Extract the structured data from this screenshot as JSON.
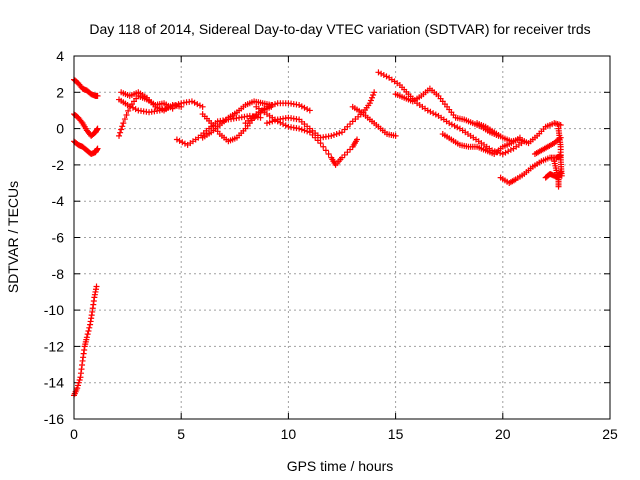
{
  "chart_data": {
    "type": "scatter",
    "title": "Day 118 of 2014, Sidereal Day-to-day VTEC variation (SDTVAR) for receiver trds",
    "xlabel": "GPS time / hours",
    "ylabel": "SDTVAR / TECUs",
    "xlim": [
      0,
      25
    ],
    "ylim": [
      -16,
      4
    ],
    "xticks": [
      0,
      5,
      10,
      15,
      20,
      25
    ],
    "yticks": [
      -16,
      -14,
      -12,
      -10,
      -8,
      -6,
      -4,
      -2,
      0,
      2,
      4
    ],
    "grid": true,
    "marker": "+",
    "color": "#ff0000",
    "series": [
      {
        "name": "s1",
        "points": [
          [
            0.0,
            2.7
          ],
          [
            0.2,
            2.5
          ],
          [
            0.4,
            2.2
          ],
          [
            0.6,
            2.1
          ],
          [
            0.8,
            1.9
          ],
          [
            1.0,
            1.8
          ],
          [
            1.1,
            1.8
          ]
        ]
      },
      {
        "name": "s2",
        "points": [
          [
            0.0,
            0.8
          ],
          [
            0.2,
            0.6
          ],
          [
            0.4,
            0.3
          ],
          [
            0.6,
            -0.1
          ],
          [
            0.8,
            -0.4
          ],
          [
            1.0,
            -0.2
          ],
          [
            1.1,
            0.0
          ]
        ]
      },
      {
        "name": "s3",
        "points": [
          [
            0.0,
            -0.7
          ],
          [
            0.2,
            -0.9
          ],
          [
            0.4,
            -1.0
          ],
          [
            0.6,
            -1.2
          ],
          [
            0.8,
            -1.4
          ],
          [
            1.0,
            -1.3
          ],
          [
            1.1,
            -1.1
          ]
        ]
      },
      {
        "name": "s4",
        "points": [
          [
            0.0,
            -14.7
          ],
          [
            0.15,
            -14.3
          ],
          [
            0.3,
            -13.7
          ],
          [
            0.4,
            -12.8
          ],
          [
            0.5,
            -12.0
          ],
          [
            0.6,
            -11.5
          ],
          [
            0.75,
            -10.8
          ],
          [
            0.85,
            -10.1
          ],
          [
            0.95,
            -9.3
          ],
          [
            1.05,
            -8.7
          ]
        ]
      },
      {
        "name": "s5",
        "points": [
          [
            2.1,
            1.6
          ],
          [
            2.5,
            1.3
          ],
          [
            3.0,
            1.0
          ],
          [
            3.5,
            0.9
          ],
          [
            4.0,
            1.0
          ],
          [
            4.5,
            1.2
          ],
          [
            5.0,
            1.4
          ],
          [
            5.5,
            1.5
          ],
          [
            6.0,
            1.2
          ]
        ]
      },
      {
        "name": "s6",
        "points": [
          [
            2.1,
            -0.4
          ],
          [
            2.3,
            0.3
          ],
          [
            2.6,
            1.2
          ],
          [
            3.0,
            1.8
          ],
          [
            3.4,
            1.6
          ],
          [
            3.8,
            1.3
          ],
          [
            4.2,
            1.4
          ],
          [
            4.6,
            1.1
          ]
        ]
      },
      {
        "name": "s7",
        "points": [
          [
            2.2,
            2.0
          ],
          [
            2.6,
            1.8
          ],
          [
            3.0,
            2.0
          ],
          [
            3.4,
            1.7
          ],
          [
            3.8,
            1.2
          ],
          [
            4.2,
            1.0
          ],
          [
            4.6,
            1.3
          ],
          [
            5.0,
            1.2
          ]
        ]
      },
      {
        "name": "s8",
        "points": [
          [
            4.8,
            -0.6
          ],
          [
            5.3,
            -0.9
          ],
          [
            5.8,
            -0.5
          ],
          [
            6.3,
            0.0
          ],
          [
            6.7,
            0.4
          ],
          [
            7.2,
            0.5
          ],
          [
            7.7,
            0.6
          ],
          [
            8.2,
            0.7
          ],
          [
            8.7,
            0.6
          ]
        ]
      },
      {
        "name": "s9",
        "points": [
          [
            6.0,
            0.8
          ],
          [
            6.4,
            0.3
          ],
          [
            6.8,
            -0.3
          ],
          [
            7.2,
            -0.7
          ],
          [
            7.6,
            -0.5
          ],
          [
            8.0,
            0.0
          ],
          [
            8.4,
            0.6
          ],
          [
            8.8,
            1.0
          ],
          [
            9.2,
            1.2
          ]
        ]
      },
      {
        "name": "s10",
        "points": [
          [
            6.0,
            -0.5
          ],
          [
            6.4,
            -0.2
          ],
          [
            6.8,
            0.2
          ],
          [
            7.2,
            0.6
          ],
          [
            7.6,
            0.9
          ],
          [
            8.0,
            1.3
          ],
          [
            8.4,
            1.5
          ],
          [
            8.8,
            1.4
          ],
          [
            9.2,
            1.3
          ]
        ]
      },
      {
        "name": "s11",
        "points": [
          [
            8.0,
            0.3
          ],
          [
            8.5,
            0.8
          ],
          [
            9.0,
            1.2
          ],
          [
            9.5,
            1.4
          ],
          [
            10.0,
            1.4
          ],
          [
            10.5,
            1.3
          ],
          [
            11.0,
            1.0
          ]
        ]
      },
      {
        "name": "s12",
        "points": [
          [
            8.5,
            1.2
          ],
          [
            9.0,
            0.8
          ],
          [
            9.5,
            0.4
          ],
          [
            10.0,
            0.1
          ],
          [
            10.5,
            0.0
          ],
          [
            11.0,
            -0.2
          ],
          [
            11.5,
            -0.8
          ],
          [
            12.0,
            -1.6
          ],
          [
            12.2,
            -2.0
          ],
          [
            12.5,
            -1.6
          ],
          [
            13.0,
            -1.0
          ],
          [
            13.2,
            -0.6
          ]
        ]
      },
      {
        "name": "s13",
        "points": [
          [
            9.0,
            0.3
          ],
          [
            9.5,
            0.5
          ],
          [
            10.0,
            0.6
          ],
          [
            10.5,
            0.5
          ],
          [
            11.0,
            0.0
          ],
          [
            11.5,
            -0.5
          ],
          [
            12.0,
            -0.4
          ],
          [
            12.5,
            -0.2
          ],
          [
            13.0,
            0.4
          ],
          [
            13.5,
            0.9
          ],
          [
            13.8,
            1.4
          ],
          [
            14.0,
            2.0
          ]
        ]
      },
      {
        "name": "s14",
        "points": [
          [
            13.0,
            1.2
          ],
          [
            13.4,
            0.9
          ],
          [
            13.8,
            0.5
          ],
          [
            14.2,
            0.1
          ],
          [
            14.6,
            -0.3
          ],
          [
            15.0,
            -0.4
          ]
        ]
      },
      {
        "name": "s15",
        "points": [
          [
            14.2,
            3.1
          ],
          [
            14.7,
            2.8
          ],
          [
            15.2,
            2.4
          ],
          [
            15.6,
            1.9
          ],
          [
            16.0,
            1.4
          ],
          [
            16.5,
            1.0
          ],
          [
            17.0,
            0.7
          ],
          [
            17.5,
            0.3
          ],
          [
            18.0,
            0.0
          ],
          [
            18.5,
            -0.4
          ],
          [
            19.0,
            -0.8
          ],
          [
            19.5,
            -1.2
          ],
          [
            20.0,
            -1.4
          ],
          [
            20.5,
            -1.1
          ],
          [
            21.0,
            -0.7
          ]
        ]
      },
      {
        "name": "s16",
        "points": [
          [
            15.0,
            1.9
          ],
          [
            15.4,
            1.7
          ],
          [
            15.8,
            1.5
          ],
          [
            16.2,
            1.8
          ],
          [
            16.6,
            2.2
          ],
          [
            17.0,
            1.8
          ],
          [
            17.4,
            1.2
          ],
          [
            17.8,
            0.6
          ],
          [
            18.2,
            0.5
          ],
          [
            18.6,
            0.3
          ],
          [
            19.0,
            0.1
          ],
          [
            19.4,
            -0.2
          ],
          [
            19.8,
            -0.4
          ]
        ]
      },
      {
        "name": "s17",
        "points": [
          [
            17.2,
            -0.3
          ],
          [
            17.6,
            -0.6
          ],
          [
            18.0,
            -0.9
          ],
          [
            18.4,
            -1.0
          ],
          [
            18.8,
            -1.0
          ],
          [
            19.2,
            -1.2
          ],
          [
            19.6,
            -1.4
          ],
          [
            20.0,
            -1.0
          ],
          [
            20.4,
            -0.8
          ],
          [
            20.8,
            -0.5
          ]
        ]
      },
      {
        "name": "s18",
        "points": [
          [
            18.8,
            0.3
          ],
          [
            19.2,
            0.1
          ],
          [
            19.6,
            -0.2
          ],
          [
            20.0,
            -0.5
          ],
          [
            20.4,
            -0.7
          ],
          [
            20.8,
            -0.6
          ],
          [
            21.2,
            -0.8
          ],
          [
            21.6,
            -0.4
          ],
          [
            22.0,
            0.1
          ],
          [
            22.4,
            0.3
          ],
          [
            22.7,
            0.2
          ]
        ]
      },
      {
        "name": "s19",
        "points": [
          [
            19.9,
            -2.7
          ],
          [
            20.3,
            -3.0
          ],
          [
            20.6,
            -2.8
          ],
          [
            21.0,
            -2.5
          ],
          [
            21.4,
            -2.1
          ],
          [
            21.8,
            -1.8
          ],
          [
            22.2,
            -1.6
          ],
          [
            22.5,
            -1.6
          ],
          [
            22.7,
            -1.5
          ]
        ]
      },
      {
        "name": "s20",
        "points": [
          [
            21.5,
            -1.4
          ],
          [
            21.8,
            -1.2
          ],
          [
            22.1,
            -1.0
          ],
          [
            22.4,
            -0.8
          ],
          [
            22.7,
            -0.5
          ]
        ]
      },
      {
        "name": "s21",
        "points": [
          [
            22.0,
            -2.7
          ],
          [
            22.2,
            -2.5
          ],
          [
            22.4,
            -2.6
          ],
          [
            22.6,
            -2.7
          ],
          [
            22.7,
            -2.4
          ]
        ]
      },
      {
        "name": "s22",
        "points": [
          [
            22.6,
            0.0
          ],
          [
            22.65,
            -0.5
          ],
          [
            22.7,
            -1.0
          ],
          [
            22.7,
            -1.6
          ],
          [
            22.72,
            -2.1
          ],
          [
            22.75,
            -2.6
          ]
        ]
      },
      {
        "name": "s23",
        "points": [
          [
            22.4,
            -1.8
          ],
          [
            22.5,
            -2.3
          ],
          [
            22.6,
            -2.8
          ],
          [
            22.6,
            -3.2
          ]
        ]
      }
    ]
  }
}
